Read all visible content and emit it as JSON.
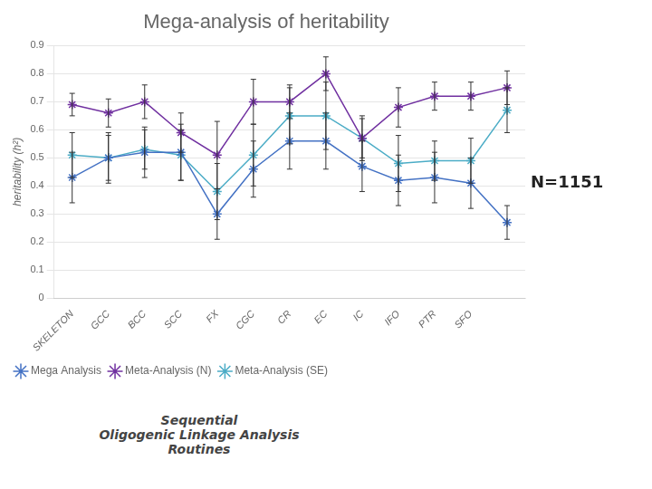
{
  "chart_data": {
    "type": "line",
    "title": "Mega-analysis of heritability",
    "categories": [
      "SKELETON",
      "GCC",
      "BCC",
      "SCC",
      "FX",
      "CGC",
      "CR",
      "EC",
      "IC",
      "IFO",
      "PTR",
      "SFO",
      null
    ],
    "series": [
      {
        "name": "Mega Analysis",
        "color": "#4472C4",
        "values": [
          0.43,
          0.5,
          0.52,
          0.52,
          0.3,
          0.46,
          0.56,
          0.56,
          0.47,
          0.42,
          0.43,
          0.41,
          0.27
        ],
        "errors": [
          0.09,
          0.09,
          0.09,
          0.1,
          0.09,
          0.1,
          0.1,
          0.1,
          0.09,
          0.09,
          0.09,
          0.09,
          0.06
        ]
      },
      {
        "name": "Meta-Analysis (N)",
        "color": "#7030A0",
        "values": [
          0.69,
          0.66,
          0.7,
          0.59,
          0.51,
          0.7,
          0.7,
          0.8,
          0.57,
          0.68,
          0.72,
          0.72,
          0.75
        ],
        "errors": [
          0.04,
          0.05,
          0.06,
          0.07,
          0.12,
          0.08,
          0.06,
          0.06,
          0.07,
          0.07,
          0.05,
          0.05,
          0.06
        ]
      },
      {
        "name": "Meta-Analysis (SE)",
        "color": "#4BACC6",
        "values": [
          0.51,
          0.5,
          0.53,
          0.51,
          0.38,
          0.51,
          0.65,
          0.65,
          0.57,
          0.48,
          0.49,
          0.49,
          0.67
        ],
        "errors": [
          0.08,
          0.08,
          0.07,
          0.09,
          0.1,
          0.11,
          0.1,
          0.12,
          0.08,
          0.1,
          0.07,
          0.08,
          0.08
        ]
      }
    ],
    "ylabel": "heritability (h²)",
    "ylim": [
      0,
      0.9
    ],
    "yticks": [
      0,
      0.1,
      0.2,
      0.3,
      0.4,
      0.5,
      0.6,
      0.7,
      0.8,
      0.9
    ],
    "grid": true,
    "legend": "lower left",
    "marker": "star",
    "annotations": [
      "N=1151",
      "Sequential\nOligogenic Linkage Analysis\nRoutines"
    ]
  }
}
